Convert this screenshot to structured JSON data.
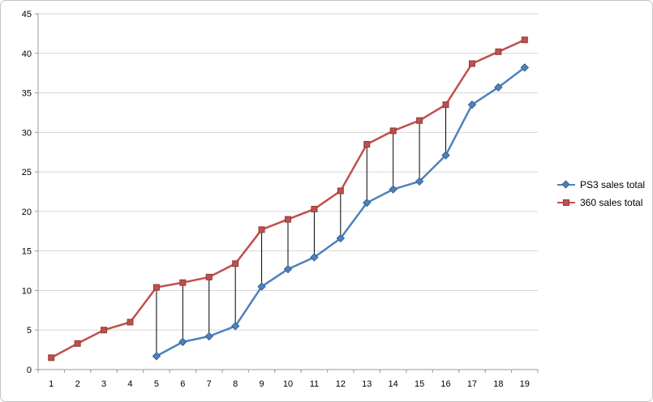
{
  "chart_data": {
    "type": "line",
    "title": "",
    "xlabel": "",
    "ylabel": "",
    "categories": [
      "1",
      "2",
      "3",
      "4",
      "5",
      "6",
      "7",
      "8",
      "9",
      "10",
      "11",
      "12",
      "13",
      "14",
      "15",
      "16",
      "17",
      "18",
      "19"
    ],
    "y_ticks": [
      0,
      5,
      10,
      15,
      20,
      25,
      30,
      35,
      40,
      45
    ],
    "ylim": [
      0,
      45
    ],
    "grid": true,
    "legend_position": "right",
    "series": [
      {
        "name": "PS3 sales total",
        "color": "#4F81BD",
        "marker_border": "#36618e",
        "marker": "diamond",
        "values": [
          null,
          null,
          null,
          null,
          1.7,
          3.5,
          4.2,
          5.5,
          10.5,
          12.7,
          14.2,
          16.6,
          21.1,
          22.8,
          23.8,
          27.1,
          33.5,
          35.7,
          38.2
        ]
      },
      {
        "name": "360 sales total",
        "color": "#C0504D",
        "marker_border": "#8e3a38",
        "marker": "square",
        "values": [
          1.5,
          3.3,
          5.0,
          6.0,
          10.4,
          11.0,
          11.7,
          13.4,
          17.7,
          19.0,
          20.3,
          22.6,
          28.5,
          30.2,
          31.5,
          33.5,
          38.7,
          40.2,
          41.7
        ]
      }
    ],
    "high_low_lines": {
      "color": "#000000",
      "x_categories": [
        "5",
        "6",
        "7",
        "8",
        "9",
        "10",
        "11",
        "12",
        "13",
        "14",
        "15",
        "16"
      ]
    }
  },
  "colors": {
    "gridline": "#d6d6d6",
    "axis": "#9a9a9a",
    "text": "#000000",
    "frame_border": "#c3c3c3"
  }
}
